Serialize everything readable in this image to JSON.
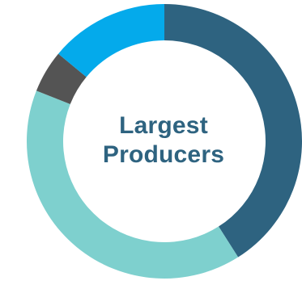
{
  "chart_data": {
    "type": "pie",
    "title": "Largest Producers",
    "title_lines": [
      "Largest",
      "Producers"
    ],
    "values": [
      41,
      40,
      5,
      14
    ],
    "colors": [
      "#2e6380",
      "#7ed0ce",
      "#545454",
      "#04aaeb"
    ],
    "donut": true,
    "legend": "none"
  }
}
